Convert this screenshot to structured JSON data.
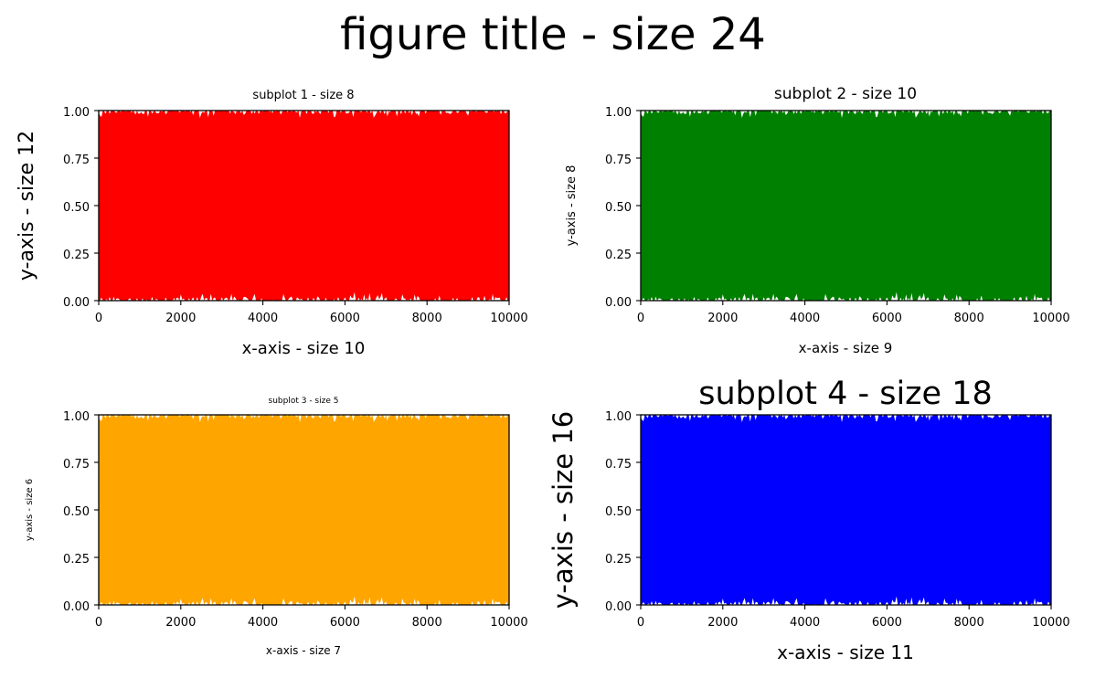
{
  "figure": {
    "title": "figure title - size 24"
  },
  "chart_data": [
    {
      "type": "area",
      "title": "subplot 1 - size 8",
      "xlabel": "x-axis - size 10",
      "ylabel": "y-axis - size 12",
      "color": "#ff0000",
      "xlim": [
        0,
        10000
      ],
      "ylim": [
        0.0,
        1.0
      ],
      "xticks": [
        "0",
        "2000",
        "4000",
        "6000",
        "8000",
        "10000"
      ],
      "yticks": [
        "0.00",
        "0.25",
        "0.50",
        "0.75",
        "1.00"
      ],
      "series": [
        {
          "description": "fill between random values near 0 (lower) and near 1 (upper) for x = 0..10000",
          "lower_range": [
            0.0,
            0.05
          ],
          "upper_range": [
            0.95,
            1.0
          ]
        }
      ],
      "grid": false
    },
    {
      "type": "area",
      "title": "subplot 2 - size 10",
      "xlabel": "x-axis - size 9",
      "ylabel": "y-axis - size 8",
      "color": "#008000",
      "xlim": [
        0,
        10000
      ],
      "ylim": [
        0.0,
        1.0
      ],
      "xticks": [
        "0",
        "2000",
        "4000",
        "6000",
        "8000",
        "10000"
      ],
      "yticks": [
        "0.00",
        "0.25",
        "0.50",
        "0.75",
        "1.00"
      ],
      "series": [
        {
          "description": "fill between random values near 0 (lower) and near 1 (upper) for x = 0..10000",
          "lower_range": [
            0.0,
            0.05
          ],
          "upper_range": [
            0.95,
            1.0
          ]
        }
      ],
      "grid": false
    },
    {
      "type": "area",
      "title": "subplot 3 - size 5",
      "xlabel": "x-axis - size 7",
      "ylabel": "y-axis - size 6",
      "color": "#ffa500",
      "xlim": [
        0,
        10000
      ],
      "ylim": [
        0.0,
        1.0
      ],
      "xticks": [
        "0",
        "2000",
        "4000",
        "6000",
        "8000",
        "10000"
      ],
      "yticks": [
        "0.00",
        "0.25",
        "0.50",
        "0.75",
        "1.00"
      ],
      "series": [
        {
          "description": "fill between random values near 0 (lower) and near 1 (upper) for x = 0..10000",
          "lower_range": [
            0.0,
            0.05
          ],
          "upper_range": [
            0.95,
            1.0
          ]
        }
      ],
      "grid": false
    },
    {
      "type": "area",
      "title": "subplot 4 - size 18",
      "xlabel": "x-axis - size 11",
      "ylabel": "y-axis - size 16",
      "color": "#0000ff",
      "xlim": [
        0,
        10000
      ],
      "ylim": [
        0.0,
        1.0
      ],
      "xticks": [
        "0",
        "2000",
        "4000",
        "6000",
        "8000",
        "10000"
      ],
      "yticks": [
        "0.00",
        "0.25",
        "0.50",
        "0.75",
        "1.00"
      ],
      "series": [
        {
          "description": "fill between random values near 0 (lower) and near 1 (upper) for x = 0..10000",
          "lower_range": [
            0.0,
            0.05
          ],
          "upper_range": [
            0.95,
            1.0
          ]
        }
      ],
      "grid": false
    }
  ]
}
